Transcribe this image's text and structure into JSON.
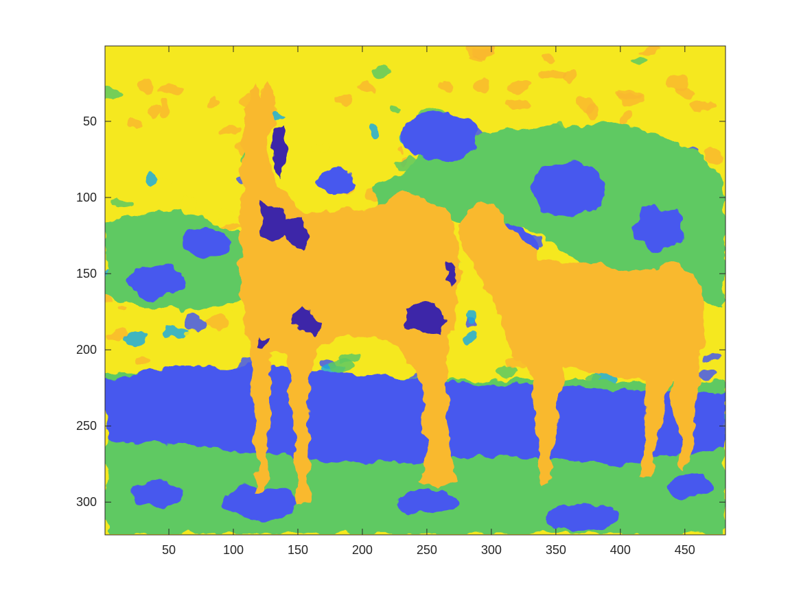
{
  "chart_data": {
    "type": "heatmap",
    "title": "",
    "xlabel": "",
    "ylabel": "",
    "xlim": [
      0.5,
      481.5
    ],
    "ylim": [
      0.5,
      321.5
    ],
    "y_reversed": true,
    "x_ticks": [
      50,
      100,
      150,
      200,
      250,
      300,
      350,
      400,
      450
    ],
    "y_ticks": [
      50,
      100,
      150,
      200,
      250,
      300
    ],
    "x_tick_labels": [
      "50",
      "100",
      "150",
      "200",
      "250",
      "300",
      "350",
      "400",
      "450"
    ],
    "y_tick_labels": [
      "50",
      "100",
      "150",
      "200",
      "250",
      "300"
    ],
    "grid": false,
    "colormap": "parula",
    "levels": [
      {
        "name": "level-1",
        "color": "#3e26a8"
      },
      {
        "name": "level-2",
        "color": "#4659ee"
      },
      {
        "name": "level-3",
        "color": "#1eabdc"
      },
      {
        "name": "level-4",
        "color": "#5ec962"
      },
      {
        "name": "level-5",
        "color": "#f9b92f"
      },
      {
        "name": "level-6",
        "color": "#f5e81f"
      }
    ],
    "regions": {
      "background": "level-6",
      "horses": "level-5",
      "water_band": "level-2",
      "foliage": "level-4",
      "shadows": "level-1"
    }
  }
}
